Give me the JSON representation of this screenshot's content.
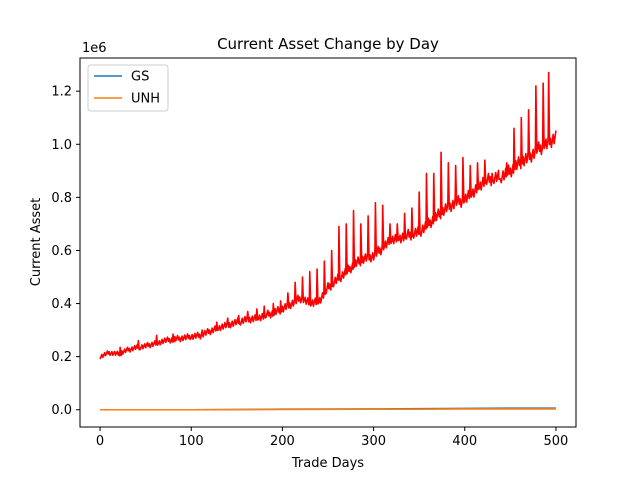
{
  "chart_data": {
    "type": "line",
    "title": "Current Asset Change by Day",
    "xlabel": "Trade Days",
    "ylabel": "Current Asset",
    "y_offset_label": "1e6",
    "xlim": [
      -22,
      522
    ],
    "ylim": [
      -0.065,
      1.325
    ],
    "y_scale_factor": 1000000,
    "x_ticks": [
      0,
      100,
      200,
      300,
      400,
      500
    ],
    "x_tick_labels": [
      "0",
      "100",
      "200",
      "300",
      "400",
      "500"
    ],
    "y_ticks": [
      0.0,
      0.2,
      0.4,
      0.6,
      0.8,
      1.0,
      1.2
    ],
    "y_tick_labels": [
      "0.0",
      "0.2",
      "0.4",
      "0.6",
      "0.8",
      "1.0",
      "1.2"
    ],
    "grid": false,
    "legend_position": "top-left",
    "series": [
      {
        "name": "GS",
        "color": "#1f77b4",
        "in_legend": true,
        "x": [
          0,
          100,
          200,
          300,
          350,
          400,
          450,
          500
        ],
        "values": [
          0.0,
          0.0,
          0.002,
          0.003,
          0.004,
          0.005,
          0.006,
          0.006
        ]
      },
      {
        "name": "UNH",
        "color": "#ff7f0e",
        "in_legend": true,
        "x": [
          0,
          100,
          200,
          300,
          350,
          400,
          450,
          500
        ],
        "values": [
          0.0,
          0.0,
          0.001,
          0.002,
          0.002,
          0.003,
          0.003,
          0.003
        ]
      },
      {
        "color": "#ff0000",
        "in_legend": false,
        "x": [
          0,
          10,
          20,
          30,
          40,
          50,
          60,
          70,
          80,
          90,
          100,
          110,
          120,
          130,
          140,
          150,
          160,
          170,
          180,
          190,
          200,
          210,
          220,
          230,
          240,
          250,
          260,
          270,
          280,
          290,
          300,
          310,
          320,
          330,
          340,
          350,
          360,
          370,
          380,
          390,
          400,
          410,
          420,
          430,
          440,
          450,
          460,
          470,
          480,
          490,
          500
        ],
        "values": [
          0.2,
          0.215,
          0.21,
          0.225,
          0.235,
          0.24,
          0.25,
          0.26,
          0.265,
          0.27,
          0.275,
          0.28,
          0.295,
          0.31,
          0.32,
          0.33,
          0.34,
          0.345,
          0.355,
          0.365,
          0.38,
          0.4,
          0.42,
          0.4,
          0.41,
          0.46,
          0.49,
          0.52,
          0.55,
          0.57,
          0.58,
          0.61,
          0.64,
          0.65,
          0.66,
          0.67,
          0.7,
          0.73,
          0.76,
          0.78,
          0.79,
          0.82,
          0.86,
          0.87,
          0.88,
          0.9,
          0.93,
          0.95,
          0.98,
          1.0,
          1.03
        ],
        "spikes": [
          {
            "x": 22,
            "y": 0.235
          },
          {
            "x": 42,
            "y": 0.26
          },
          {
            "x": 62,
            "y": 0.28
          },
          {
            "x": 80,
            "y": 0.285
          },
          {
            "x": 98,
            "y": 0.28
          },
          {
            "x": 112,
            "y": 0.3
          },
          {
            "x": 128,
            "y": 0.33
          },
          {
            "x": 140,
            "y": 0.345
          },
          {
            "x": 152,
            "y": 0.355
          },
          {
            "x": 162,
            "y": 0.37
          },
          {
            "x": 172,
            "y": 0.38
          },
          {
            "x": 180,
            "y": 0.39
          },
          {
            "x": 190,
            "y": 0.4
          },
          {
            "x": 198,
            "y": 0.41
          },
          {
            "x": 206,
            "y": 0.44
          },
          {
            "x": 214,
            "y": 0.48
          },
          {
            "x": 222,
            "y": 0.5
          },
          {
            "x": 230,
            "y": 0.52
          },
          {
            "x": 238,
            "y": 0.53
          },
          {
            "x": 246,
            "y": 0.56
          },
          {
            "x": 254,
            "y": 0.6
          },
          {
            "x": 262,
            "y": 0.69
          },
          {
            "x": 270,
            "y": 0.7
          },
          {
            "x": 278,
            "y": 0.75
          },
          {
            "x": 286,
            "y": 0.7
          },
          {
            "x": 294,
            "y": 0.73
          },
          {
            "x": 302,
            "y": 0.78
          },
          {
            "x": 310,
            "y": 0.77
          },
          {
            "x": 318,
            "y": 0.7
          },
          {
            "x": 326,
            "y": 0.7
          },
          {
            "x": 334,
            "y": 0.74
          },
          {
            "x": 342,
            "y": 0.76
          },
          {
            "x": 350,
            "y": 0.82
          },
          {
            "x": 358,
            "y": 0.89
          },
          {
            "x": 366,
            "y": 0.89
          },
          {
            "x": 374,
            "y": 0.97
          },
          {
            "x": 382,
            "y": 0.93
          },
          {
            "x": 390,
            "y": 0.92
          },
          {
            "x": 398,
            "y": 0.95
          },
          {
            "x": 406,
            "y": 0.92
          },
          {
            "x": 414,
            "y": 0.93
          },
          {
            "x": 422,
            "y": 0.94
          },
          {
            "x": 430,
            "y": 0.89
          },
          {
            "x": 438,
            "y": 0.87
          },
          {
            "x": 446,
            "y": 0.93
          },
          {
            "x": 454,
            "y": 1.06
          },
          {
            "x": 462,
            "y": 1.1
          },
          {
            "x": 470,
            "y": 1.13
          },
          {
            "x": 478,
            "y": 1.22
          },
          {
            "x": 486,
            "y": 1.23
          },
          {
            "x": 492,
            "y": 1.27
          }
        ]
      }
    ]
  }
}
